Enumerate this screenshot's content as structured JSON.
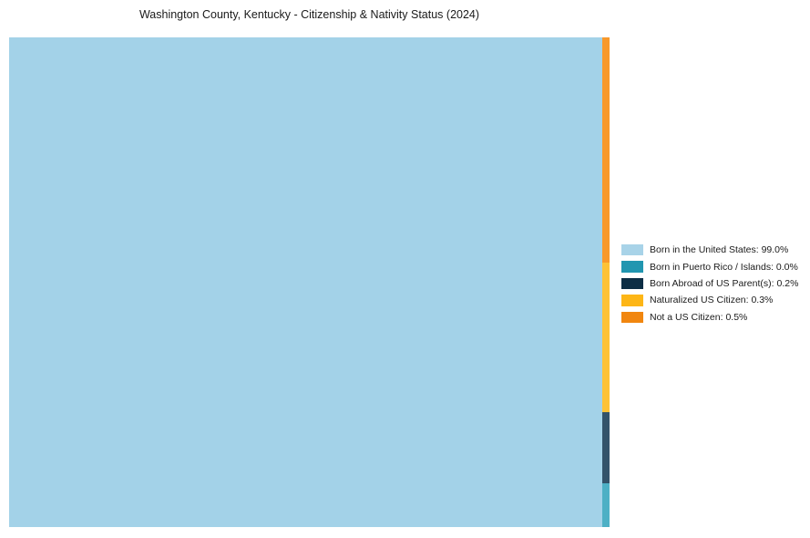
{
  "title": "Washington County, Kentucky - Citizenship & Nativity Status (2024)",
  "chart_data": {
    "type": "treemap",
    "title": "Washington County, Kentucky - Citizenship & Nativity Status (2024)",
    "categories": [
      "Born in the United States",
      "Born in Puerto Rico / Islands",
      "Born Abroad of US Parent(s)",
      "Naturalized US Citizen",
      "Not a US Citizen"
    ],
    "values_pct": [
      99.0,
      0.0,
      0.2,
      0.3,
      0.5
    ],
    "palette": [
      "#a8d3e8",
      "#2196b0",
      "#0d2e45",
      "#fdb616",
      "#f1860f"
    ],
    "legend_position": "right-outside-center",
    "layout": {
      "main_rect": {
        "category": "Born in the United States",
        "color": "#a3d2e8",
        "width_fraction": 0.9879
      },
      "strip_segments": [
        {
          "category": "Not a US Citizen",
          "color": "#f8992b",
          "height_fraction": 0.46
        },
        {
          "category": "Naturalized US Citizen",
          "color": "#fdc237",
          "height_fraction": 0.305
        },
        {
          "category": "Born Abroad of US Parent(s)",
          "color": "#33536a",
          "height_fraction": 0.145
        },
        {
          "category": "Born in Puerto Rico / Islands",
          "color": "#4db0c5",
          "height_fraction": 0.09
        }
      ]
    }
  },
  "legend": {
    "items": [
      {
        "label": "Born in the United States: 99.0%",
        "color": "#a8d3e8"
      },
      {
        "label": "Born in Puerto Rico / Islands: 0.0%",
        "color": "#2196b0"
      },
      {
        "label": "Born Abroad of US Parent(s): 0.2%",
        "color": "#0d2e45"
      },
      {
        "label": "Naturalized US Citizen: 0.3%",
        "color": "#fdb616"
      },
      {
        "label": "Not a US Citizen: 0.5%",
        "color": "#f1860f"
      }
    ]
  }
}
